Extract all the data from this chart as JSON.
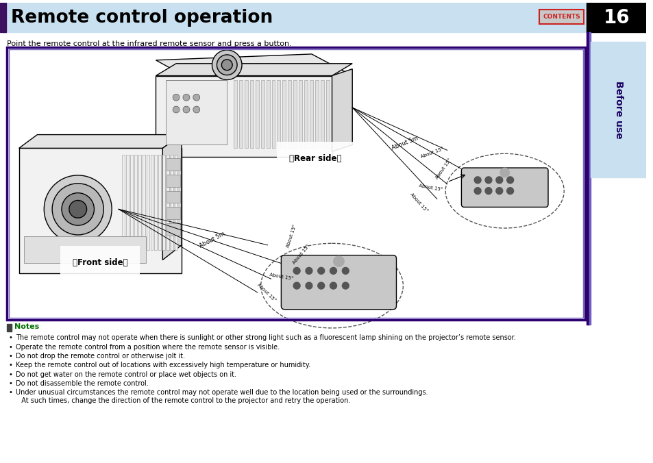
{
  "title": "Remote control operation",
  "page_num": "16",
  "subtitle": "Point the remote control at the infrared remote sensor and press a button.",
  "sidebar_label": "Before use",
  "contents_label": "CONTENTS",
  "notes_header": "Notes",
  "notes_line1": "The remote control may not operate when there is sunlight or other strong light such as a fluorescent lamp shining on the projector’s remote sensor.",
  "notes_line2": "Operate the remote control from a position where the remote sensor is visible.",
  "notes_line3": "Do not drop the remote control or otherwise jolt it.",
  "notes_line4": "Keep the remote control out of locations with excessively high temperature or humidity.",
  "notes_line5": "Do not get water on the remote control or place wet objects on it.",
  "notes_line6": "Do not disassemble the remote control.",
  "notes_line7a": "Under unusual circumstances the remote control may not operate well due to the location being used or the surroundings.",
  "notes_line7b": "  At such times, change the direction of the remote control to the projector and retry the operation.",
  "front_side_label": "［Front side］",
  "rear_side_label": "［Rear side］",
  "about_5m_front": "About 5m",
  "about_5m_rear": "About 5m",
  "header_bg": "#c8e0f0",
  "accent_color": "#3d1060",
  "page_num_bg": "#000000",
  "sidebar_bg": "#c8e0f0",
  "border_color_dark": "#2d0070",
  "border_color_light": "#7060c0",
  "notes_green": "#007000",
  "diagram_bg": "#ffffff",
  "contents_border": "#cc2222",
  "contents_text": "#cc2222",
  "contents_bg": "#c8c8c8"
}
